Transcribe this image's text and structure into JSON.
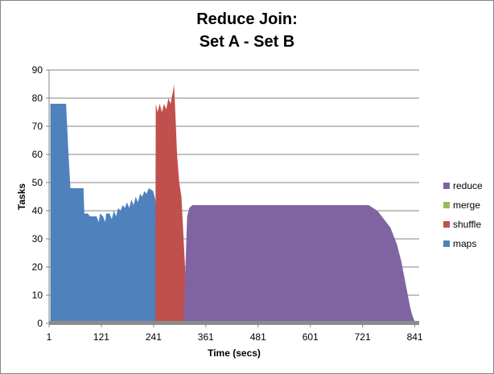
{
  "chart_data": {
    "type": "area",
    "title_line1": "Reduce Join:",
    "title_line2": "Set A - Set B",
    "xlabel": "Time (secs)",
    "ylabel": "Tasks",
    "xlim": [
      1,
      851
    ],
    "ylim": [
      0,
      90
    ],
    "x_ticks": [
      1,
      121,
      241,
      361,
      481,
      601,
      721,
      841
    ],
    "y_ticks": [
      0,
      10,
      20,
      30,
      40,
      50,
      60,
      70,
      80,
      90
    ],
    "grid": "horizontal",
    "legend": "right",
    "series": [
      {
        "name": "maps",
        "color": "#4F81BD",
        "points": [
          [
            1,
            0
          ],
          [
            4,
            0
          ],
          [
            4,
            78
          ],
          [
            40,
            78
          ],
          [
            45,
            62
          ],
          [
            50,
            48
          ],
          [
            80,
            48
          ],
          [
            82,
            39
          ],
          [
            90,
            39
          ],
          [
            95,
            38
          ],
          [
            110,
            38
          ],
          [
            115,
            36
          ],
          [
            118,
            39
          ],
          [
            125,
            38
          ],
          [
            130,
            36
          ],
          [
            132,
            39
          ],
          [
            140,
            39
          ],
          [
            145,
            37
          ],
          [
            150,
            40
          ],
          [
            155,
            38
          ],
          [
            160,
            41
          ],
          [
            165,
            40
          ],
          [
            170,
            42
          ],
          [
            175,
            41
          ],
          [
            180,
            43
          ],
          [
            185,
            41
          ],
          [
            190,
            44
          ],
          [
            195,
            42
          ],
          [
            200,
            45
          ],
          [
            205,
            43
          ],
          [
            210,
            46
          ],
          [
            215,
            45
          ],
          [
            220,
            47
          ],
          [
            225,
            46
          ],
          [
            230,
            48
          ],
          [
            240,
            47
          ],
          [
            245,
            44
          ],
          [
            250,
            38
          ],
          [
            255,
            40
          ],
          [
            260,
            37
          ],
          [
            265,
            38
          ],
          [
            270,
            36
          ],
          [
            275,
            38
          ],
          [
            280,
            37
          ],
          [
            285,
            35
          ],
          [
            290,
            30
          ],
          [
            295,
            20
          ],
          [
            300,
            10
          ],
          [
            305,
            3
          ],
          [
            310,
            0
          ],
          [
            851,
            0
          ]
        ]
      },
      {
        "name": "shuffle",
        "color": "#C0504D",
        "points": [
          [
            1,
            0
          ],
          [
            245,
            0
          ],
          [
            246,
            78
          ],
          [
            250,
            75
          ],
          [
            255,
            78
          ],
          [
            260,
            75
          ],
          [
            265,
            78
          ],
          [
            270,
            76
          ],
          [
            275,
            80
          ],
          [
            280,
            78
          ],
          [
            285,
            82
          ],
          [
            288,
            85
          ],
          [
            291,
            75
          ],
          [
            295,
            60
          ],
          [
            300,
            50
          ],
          [
            305,
            45
          ],
          [
            310,
            30
          ],
          [
            315,
            15
          ],
          [
            320,
            5
          ],
          [
            325,
            3
          ],
          [
            370,
            3
          ],
          [
            372,
            1
          ],
          [
            385,
            0
          ],
          [
            851,
            0
          ]
        ]
      },
      {
        "name": "merge",
        "color": "#9BBB59",
        "points": [
          [
            1,
            0
          ],
          [
            851,
            0
          ]
        ]
      },
      {
        "name": "reduce",
        "color": "#8064A2",
        "points": [
          [
            1,
            0
          ],
          [
            310,
            0
          ],
          [
            318,
            38
          ],
          [
            323,
            41
          ],
          [
            330,
            42
          ],
          [
            735,
            42
          ],
          [
            745,
            41
          ],
          [
            755,
            40
          ],
          [
            765,
            38
          ],
          [
            775,
            36
          ],
          [
            785,
            34
          ],
          [
            795,
            30
          ],
          [
            800,
            28
          ],
          [
            805,
            25
          ],
          [
            810,
            22
          ],
          [
            815,
            18
          ],
          [
            820,
            14
          ],
          [
            825,
            10
          ],
          [
            830,
            6
          ],
          [
            835,
            3
          ],
          [
            840,
            1
          ],
          [
            845,
            0
          ],
          [
            851,
            0
          ]
        ]
      }
    ]
  }
}
